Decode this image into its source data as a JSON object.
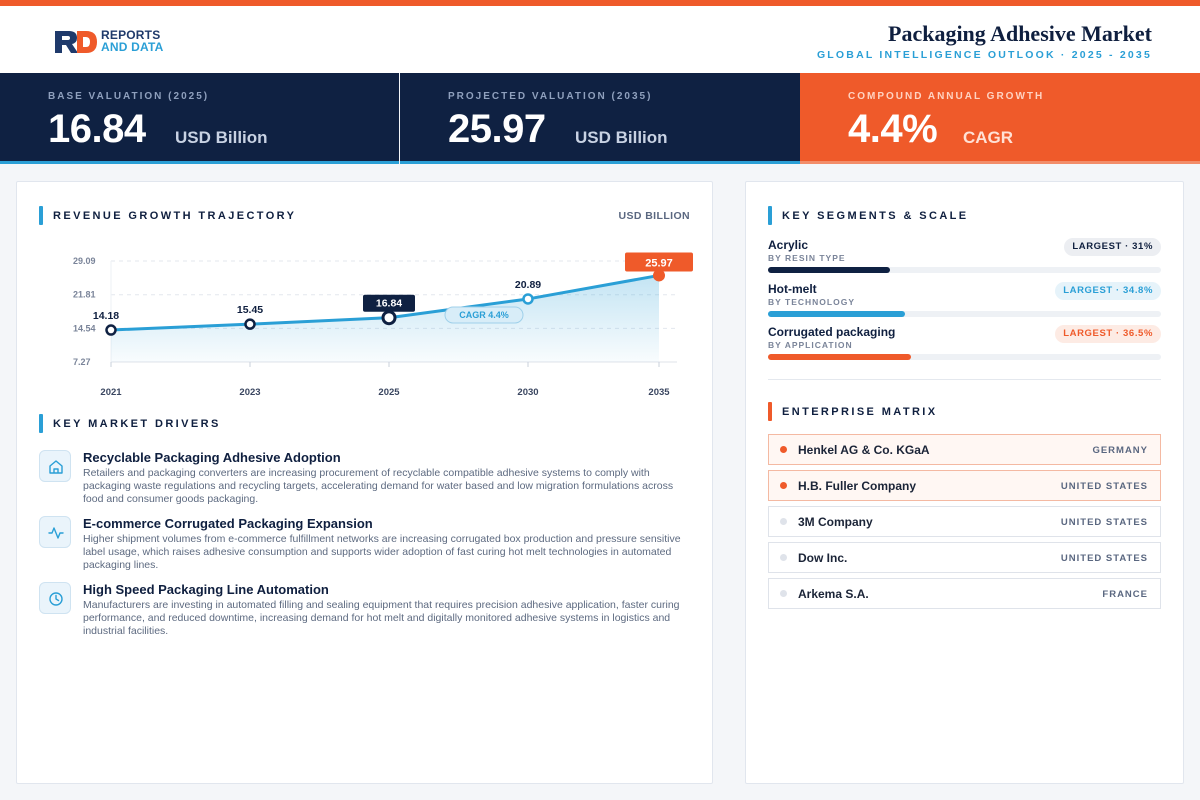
{
  "brand": {
    "line1": "REPORTS",
    "line2": "AND DATA"
  },
  "header": {
    "title": "Packaging Adhesive Market",
    "subtitle": "GLOBAL INTELLIGENCE OUTLOOK · 2025 - 2035"
  },
  "colors": {
    "accent": "#ef5a2a",
    "navy": "#0f2142",
    "blue": "#2a9fd6"
  },
  "kpis": [
    {
      "label": "BASE VALUATION (2025)",
      "value": "16.84",
      "unit": "USD Billion"
    },
    {
      "label": "PROJECTED VALUATION (2035)",
      "value": "25.97",
      "unit": "USD Billion"
    },
    {
      "label": "COMPOUND ANNUAL GROWTH",
      "value": "4.4%",
      "unit": "CAGR"
    }
  ],
  "revenue": {
    "title": "REVENUE GROWTH TRAJECTORY",
    "unit": "USD BILLION"
  },
  "chart_data": {
    "type": "area",
    "title": "REVENUE GROWTH TRAJECTORY",
    "ylabel": "USD BILLION",
    "x": [
      "2021",
      "2023",
      "2025",
      "2030",
      "2035"
    ],
    "values": [
      14.18,
      15.45,
      16.84,
      20.89,
      25.97
    ],
    "yticks": [
      "29.09",
      "21.81",
      "14.54",
      "7.27"
    ],
    "ylim": [
      7.27,
      29.09
    ],
    "annotation": "CAGR 4.4%",
    "grid": true
  },
  "drivers": {
    "title": "KEY MARKET DRIVERS",
    "items": [
      {
        "icon": "home-icon",
        "title": "Recyclable Packaging Adhesive Adoption",
        "desc": "Retailers and packaging converters are increasing procurement of recyclable compatible adhesive systems to comply with packaging waste regulations and recycling targets, accelerating demand for water based and low migration formulations across food and consumer goods packaging."
      },
      {
        "icon": "activity-icon",
        "title": "E-commerce Corrugated Packaging Expansion",
        "desc": "Higher shipment volumes from e-commerce fulfillment networks are increasing corrugated box production and pressure sensitive label usage, which raises adhesive consumption and supports wider adoption of fast curing hot melt technologies in automated packaging lines."
      },
      {
        "icon": "clock-icon",
        "title": "High Speed Packaging Line Automation",
        "desc": "Manufacturers are investing in automated filling and sealing equipment that requires precision adhesive application, faster curing performance, and reduced downtime, increasing demand for hot melt and digitally monitored adhesive systems in logistics and industrial facilities."
      }
    ]
  },
  "segments": {
    "title": "KEY SEGMENTS & SCALE",
    "items": [
      {
        "name": "Acrylic",
        "sub": "BY RESIN TYPE",
        "badge": "LARGEST · 31%",
        "share": 0.31
      },
      {
        "name": "Hot-melt",
        "sub": "BY TECHNOLOGY",
        "badge": "LARGEST · 34.8%",
        "share": 0.348
      },
      {
        "name": "Corrugated packaging",
        "sub": "BY APPLICATION",
        "badge": "LARGEST · 36.5%",
        "share": 0.365
      }
    ]
  },
  "enterprise": {
    "title": "ENTERPRISE MATRIX",
    "items": [
      {
        "name": "Henkel AG & Co. KGaA",
        "country": "GERMANY"
      },
      {
        "name": "H.B. Fuller Company",
        "country": "UNITED STATES"
      },
      {
        "name": "3M Company",
        "country": "UNITED STATES"
      },
      {
        "name": "Dow Inc.",
        "country": "UNITED STATES"
      },
      {
        "name": "Arkema S.A.",
        "country": "FRANCE"
      }
    ]
  }
}
